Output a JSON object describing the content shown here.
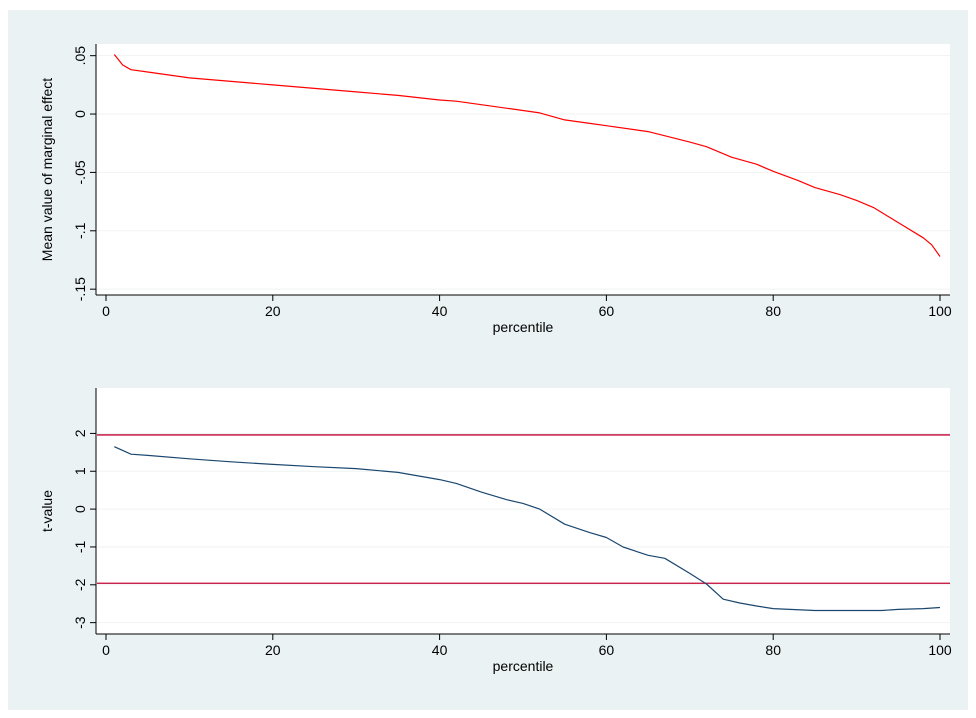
{
  "chart_data": [
    {
      "type": "line",
      "xlabel": "percentile",
      "ylabel": "Mean value of marginal effect",
      "xlim": [
        0,
        100
      ],
      "ylim": [
        -0.155,
        0.06
      ],
      "xticks": [
        0,
        20,
        40,
        60,
        80,
        100
      ],
      "xtick_labels": [
        "0",
        "20",
        "40",
        "60",
        "80",
        "100"
      ],
      "yticks": [
        0.05,
        0,
        -0.05,
        -0.1,
        -0.15
      ],
      "ytick_labels": [
        ".05",
        "0",
        "-.05",
        "-.1",
        "-.15"
      ],
      "grid": true,
      "colors": {
        "line": "#ff0000",
        "grid": "#f0f2f2",
        "plot_bg": "#ffffff",
        "figure_bg": "#eaf2f3"
      },
      "series": [
        {
          "x": [
            1,
            2,
            3,
            5,
            10,
            15,
            20,
            25,
            30,
            35,
            40,
            42,
            45,
            50,
            52,
            55,
            58,
            60,
            65,
            70,
            72,
            75,
            78,
            80,
            83,
            85,
            88,
            90,
            92,
            95,
            98,
            99,
            100
          ],
          "y": [
            0.051,
            0.042,
            0.038,
            0.036,
            0.031,
            0.028,
            0.025,
            0.022,
            0.019,
            0.016,
            0.012,
            0.011,
            0.008,
            0.003,
            0.001,
            -0.005,
            -0.008,
            -0.01,
            -0.015,
            -0.024,
            -0.028,
            -0.037,
            -0.043,
            -0.049,
            -0.057,
            -0.063,
            -0.069,
            -0.074,
            -0.08,
            -0.093,
            -0.106,
            -0.112,
            -0.122
          ]
        }
      ]
    },
    {
      "type": "line",
      "xlabel": "percentile",
      "ylabel": "t-value",
      "xlim": [
        0,
        100
      ],
      "ylim": [
        -3.3,
        3.2
      ],
      "xticks": [
        0,
        20,
        40,
        60,
        80,
        100
      ],
      "xtick_labels": [
        "0",
        "20",
        "40",
        "60",
        "80",
        "100"
      ],
      "yticks": [
        2,
        1,
        0,
        -1,
        -2,
        -3
      ],
      "ytick_labels": [
        "2",
        "1",
        "0",
        "-1",
        "-2",
        "-3"
      ],
      "grid": true,
      "reference_lines_y": [
        1.96,
        -1.96
      ],
      "colors": {
        "line": "#1a476f",
        "reference": "#c10534",
        "grid": "#f0f2f2",
        "plot_bg": "#ffffff",
        "figure_bg": "#eaf2f3"
      },
      "series": [
        {
          "x": [
            1,
            2,
            3,
            5,
            10,
            15,
            20,
            25,
            30,
            35,
            40,
            42,
            45,
            48,
            50,
            52,
            55,
            58,
            60,
            62,
            65,
            67,
            70,
            72,
            74,
            76,
            78,
            80,
            85,
            90,
            93,
            95,
            98,
            100
          ],
          "y": [
            1.65,
            1.55,
            1.45,
            1.42,
            1.33,
            1.25,
            1.18,
            1.12,
            1.07,
            0.97,
            0.78,
            0.68,
            0.45,
            0.25,
            0.15,
            0.0,
            -0.4,
            -0.62,
            -0.75,
            -1.0,
            -1.22,
            -1.3,
            -1.7,
            -1.98,
            -2.38,
            -2.48,
            -2.56,
            -2.63,
            -2.68,
            -2.68,
            -2.68,
            -2.65,
            -2.63,
            -2.6
          ]
        }
      ]
    }
  ]
}
